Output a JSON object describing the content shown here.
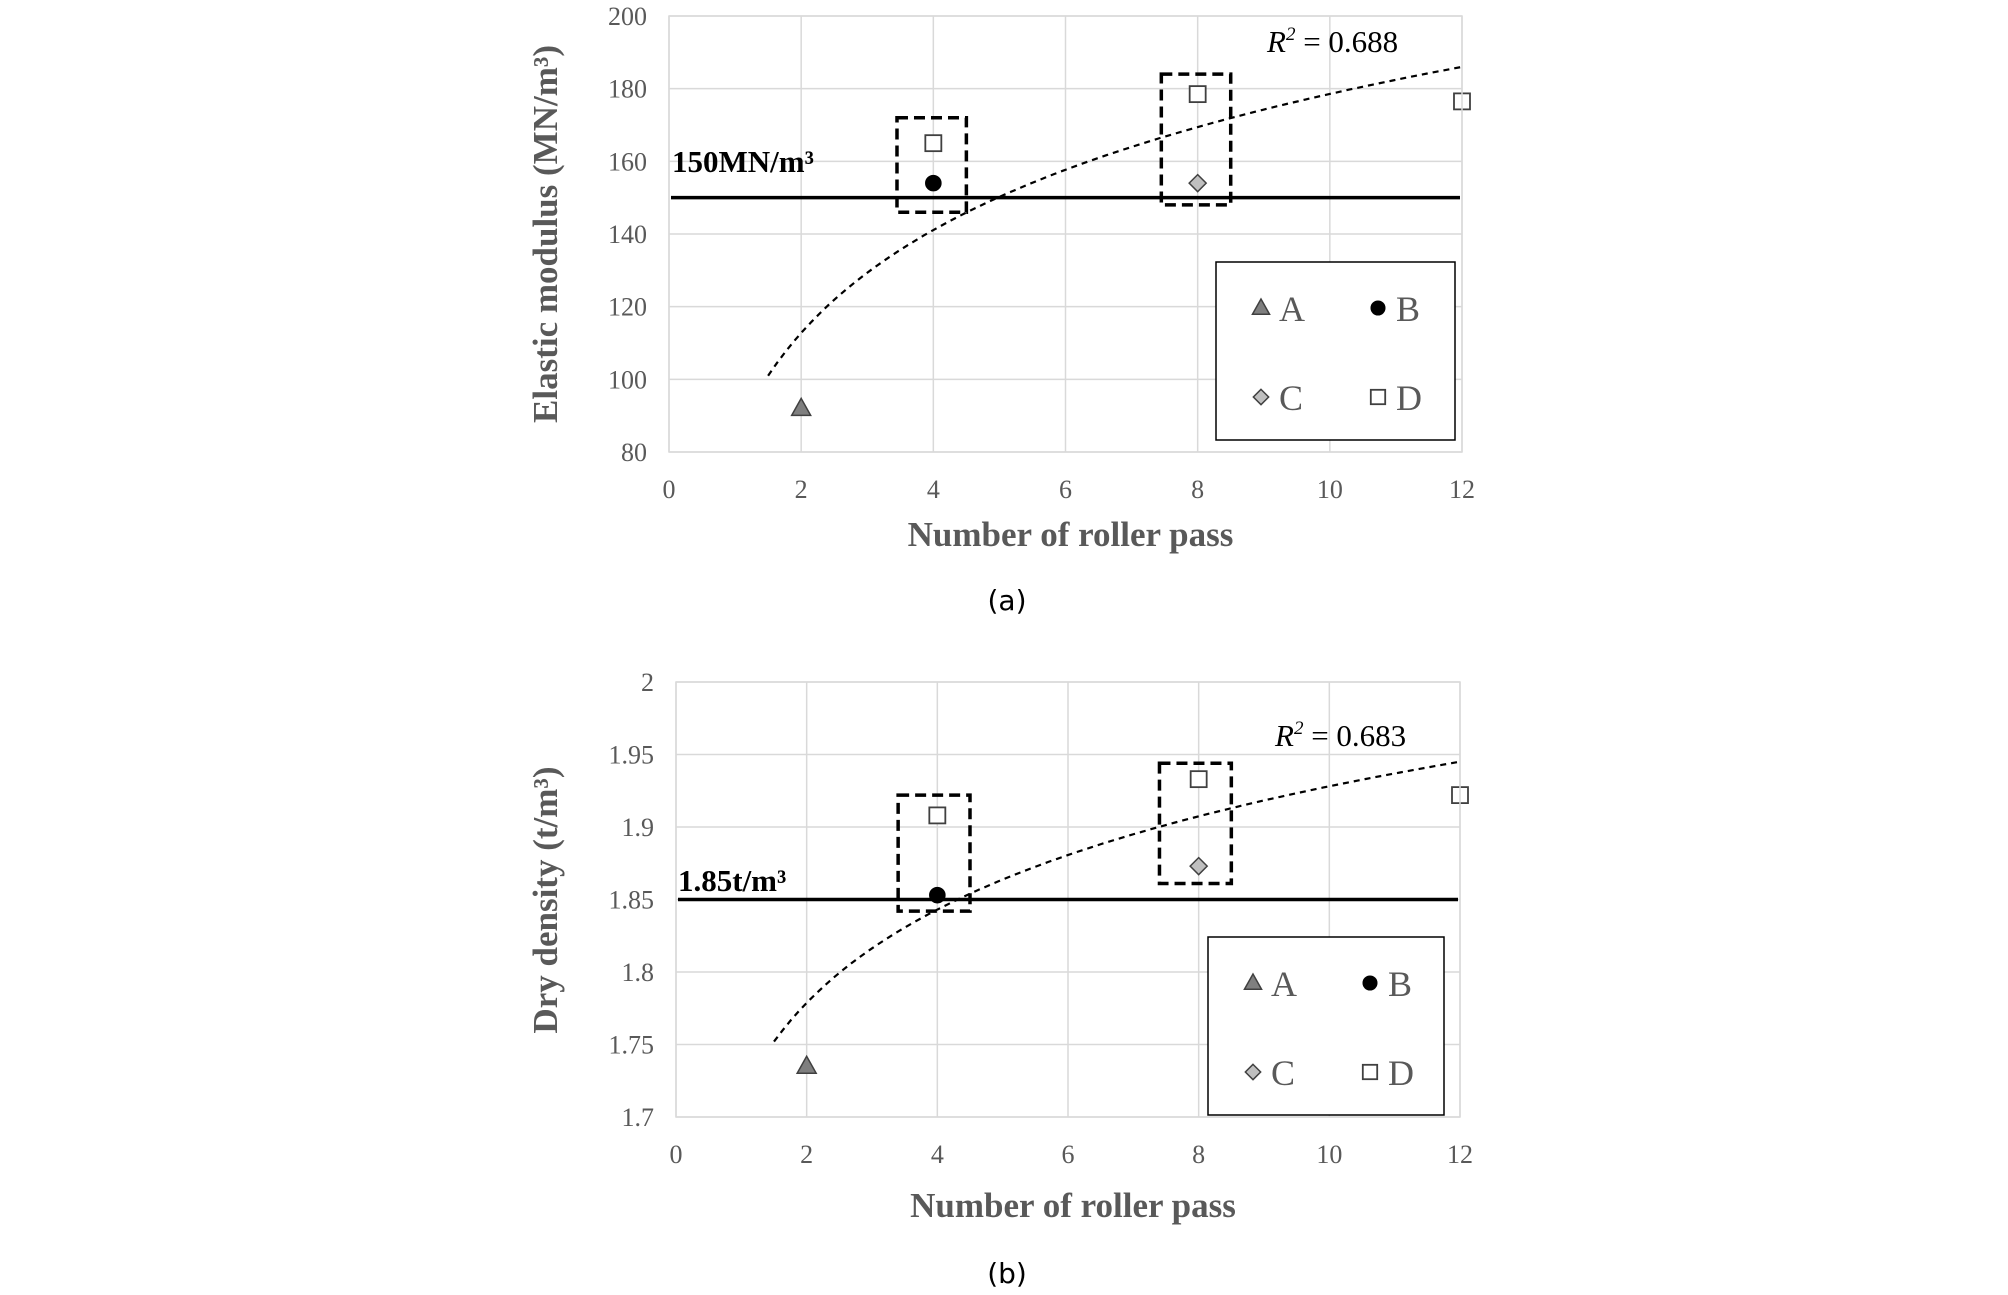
{
  "chart_data": [
    {
      "type": "scatter",
      "panel_label": "(a)",
      "xlabel": "Number of roller pass",
      "ylabel": "Elastic modulus (MN/m³)",
      "xlim": [
        0,
        12
      ],
      "ylim": [
        80,
        200
      ],
      "xticks": [
        0,
        2,
        4,
        6,
        8,
        10,
        12
      ],
      "yticks": [
        80,
        100,
        120,
        140,
        160,
        180,
        200
      ],
      "grid": true,
      "legend_position": "bottom-right",
      "threshold": {
        "value": 150,
        "label": "150MN/m³"
      },
      "trendline": {
        "type": "logarithmic",
        "x_range": [
          1.5,
          12
        ],
        "start_value": 101,
        "end_value": 186,
        "label_prefix": "R",
        "label_exp": "2",
        "label_value": " = 0.688"
      },
      "highlight_boxes": [
        {
          "x_range": [
            3.45,
            4.5
          ],
          "y_range": [
            146,
            172
          ]
        },
        {
          "x_range": [
            7.45,
            8.5
          ],
          "y_range": [
            148,
            184
          ]
        }
      ],
      "series": [
        {
          "name": "A",
          "marker": "triangle",
          "color": "#7f7f7f",
          "points": [
            [
              2,
              92
            ]
          ]
        },
        {
          "name": "B",
          "marker": "circle",
          "color": "#000000",
          "points": [
            [
              4,
              154
            ]
          ]
        },
        {
          "name": "C",
          "marker": "diamond",
          "color": "#bfbfbf",
          "points": [
            [
              8,
              154
            ]
          ]
        },
        {
          "name": "D",
          "marker": "square",
          "color": "#ffffff",
          "points": [
            [
              4,
              165
            ],
            [
              8,
              178.5
            ],
            [
              12,
              176.5
            ]
          ]
        }
      ]
    },
    {
      "type": "scatter",
      "panel_label": "(b)",
      "xlabel": "Number of roller pass",
      "ylabel": "Dry density (t/m³)",
      "xlim": [
        0,
        12
      ],
      "ylim": [
        1.7,
        2.0
      ],
      "xticks": [
        0,
        2,
        4,
        6,
        8,
        10,
        12
      ],
      "yticks": [
        1.7,
        1.75,
        1.8,
        1.85,
        1.9,
        1.95,
        2.0
      ],
      "ytick_labels": [
        "1.7",
        "1.75",
        "1.8",
        "1.85",
        "1.9",
        "1.95",
        "2"
      ],
      "grid": true,
      "legend_position": "bottom-right",
      "threshold": {
        "value": 1.85,
        "label": "1.85t/m³"
      },
      "trendline": {
        "type": "logarithmic",
        "x_range": [
          1.5,
          12
        ],
        "start_value": 1.752,
        "end_value": 1.945,
        "label_prefix": "R",
        "label_exp": "2",
        "label_value": " = 0.683"
      },
      "highlight_boxes": [
        {
          "x_range": [
            3.4,
            4.5
          ],
          "y_range": [
            1.842,
            1.922
          ]
        },
        {
          "x_range": [
            7.4,
            8.5
          ],
          "y_range": [
            1.861,
            1.944
          ]
        }
      ],
      "series": [
        {
          "name": "A",
          "marker": "triangle",
          "color": "#7f7f7f",
          "points": [
            [
              2,
              1.735
            ]
          ]
        },
        {
          "name": "B",
          "marker": "circle",
          "color": "#000000",
          "points": [
            [
              4,
              1.853
            ]
          ]
        },
        {
          "name": "C",
          "marker": "diamond",
          "color": "#bfbfbf",
          "points": [
            [
              8,
              1.873
            ]
          ]
        },
        {
          "name": "D",
          "marker": "square",
          "color": "#ffffff",
          "points": [
            [
              4,
              1.908
            ],
            [
              8,
              1.933
            ],
            [
              12,
              1.922
            ]
          ]
        }
      ]
    }
  ]
}
